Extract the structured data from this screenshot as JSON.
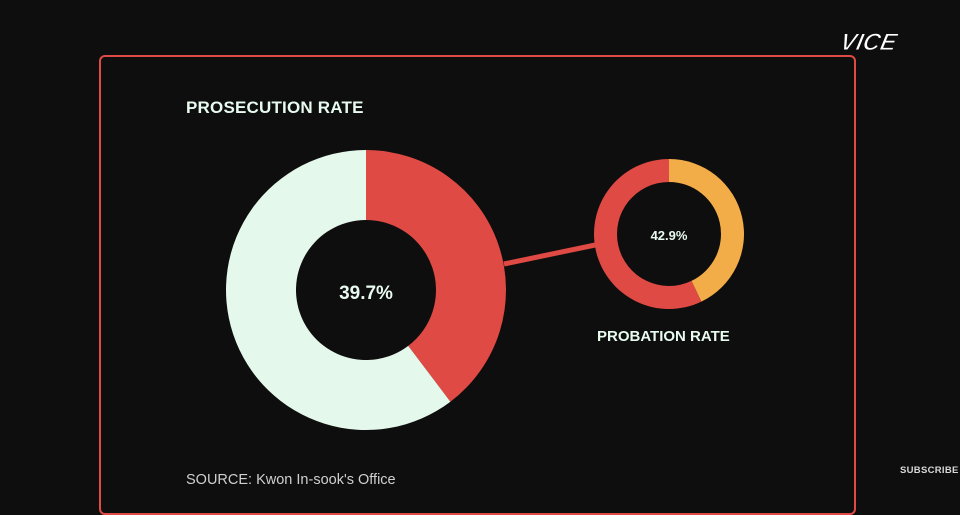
{
  "brand": {
    "logo_text": "VICE",
    "subscribe_label": "SUBSCRIBE"
  },
  "source": "SOURCE:  Kwon In-sook's Office",
  "colors": {
    "background": "#0f0e0e",
    "frame": "#e04a44",
    "highlight_red": "#df4a44",
    "light": "#e5f8ec",
    "amber": "#f2ad48"
  },
  "chart_data": [
    {
      "type": "pie",
      "title": "PROSECUTION RATE",
      "center_label": "39.7%",
      "slices": [
        {
          "label": "",
          "value": 39.7,
          "color": "#df4a44"
        },
        {
          "label": "",
          "value": 60.3,
          "color": "#e5f8ec"
        }
      ]
    },
    {
      "type": "pie",
      "title": "PROBATION RATE",
      "center_label": "42.9%",
      "slices": [
        {
          "label": "",
          "value": 42.9,
          "color": "#f2ad48"
        },
        {
          "label": "",
          "value": 57.1,
          "color": "#df4a44"
        }
      ]
    }
  ]
}
